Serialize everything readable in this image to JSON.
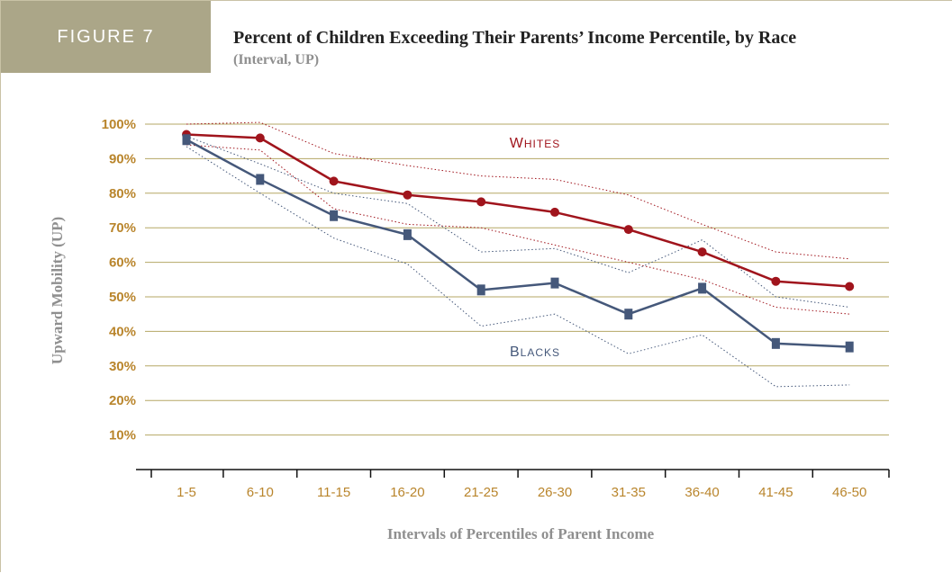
{
  "figure_label": "FIGURE 7",
  "title": "Percent of Children Exceeding Their Parents’ Income Percentile, by Race",
  "subtitle": "(Interval, UP)",
  "colors": {
    "whites": "#a0141c",
    "blacks": "#45587a",
    "grid": "#b5a765",
    "tick_label": "#b9852c",
    "axis_title": "#8f8f8f",
    "figure_label_bg": "#aba688"
  },
  "chart_data": {
    "type": "line",
    "xlabel": "Intervals of Percentiles of Parent Income",
    "ylabel": "Upward Mobility (UP)",
    "ylim": [
      0,
      100
    ],
    "yticks": [
      10,
      20,
      30,
      40,
      50,
      60,
      70,
      80,
      90,
      100
    ],
    "ytick_labels": [
      "10%",
      "20%",
      "30%",
      "40%",
      "50%",
      "60%",
      "70%",
      "80%",
      "90%",
      "100%"
    ],
    "grid": "horizontal",
    "categories": [
      "1-5",
      "6-10",
      "11-15",
      "16-20",
      "21-25",
      "26-30",
      "31-35",
      "36-40",
      "41-45",
      "46-50"
    ],
    "series": [
      {
        "name": "Whites",
        "label_first": "W",
        "label_rest": "HITES",
        "values": [
          97,
          96,
          83.5,
          79.5,
          77.5,
          74.5,
          69.5,
          63,
          54.5,
          53
        ],
        "upper": [
          100,
          100.5,
          91.5,
          88,
          85,
          84,
          79.5,
          71,
          63,
          61
        ],
        "lower": [
          94,
          92.5,
          75.5,
          71,
          70,
          65,
          60,
          55,
          47,
          45
        ]
      },
      {
        "name": "Blacks",
        "label_first": "B",
        "label_rest": "LACKS",
        "values": [
          95.5,
          84,
          73.5,
          68,
          52,
          54,
          45,
          52.5,
          36.5,
          35.5
        ],
        "upper": [
          96.5,
          88.5,
          80,
          77,
          63,
          64,
          57,
          66.5,
          50,
          47
        ],
        "lower": [
          93.5,
          80,
          67,
          59.5,
          41.5,
          45,
          33.5,
          39,
          24,
          24.5
        ]
      }
    ]
  }
}
